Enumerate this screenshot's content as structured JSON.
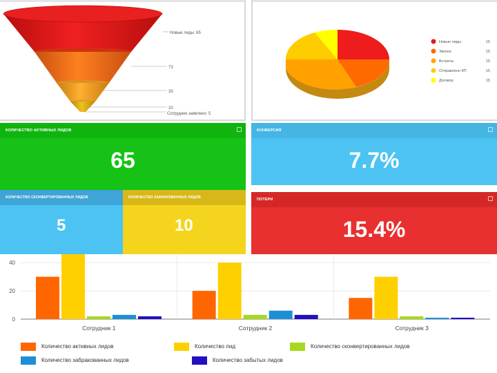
{
  "funnel": {
    "labels": [
      "Новые лиды: 65",
      "73",
      "33",
      "20",
      "Сотрудник заявлено: 5"
    ],
    "colors": [
      "#e31a1a",
      "#f27020",
      "#f5a020",
      "#e8b010"
    ]
  },
  "pie": {
    "legend": [
      {
        "label": "Новые лиды",
        "value": "15",
        "color": "#e31a1a"
      },
      {
        "label": "Звонок",
        "value": "15",
        "color": "#ff6600"
      },
      {
        "label": "Встреча",
        "value": "15",
        "color": "#ffa500"
      },
      {
        "label": "Отправлено КП",
        "value": "15",
        "color": "#ffcc00"
      },
      {
        "label": "Договор",
        "value": "15",
        "color": "#ffff00"
      }
    ]
  },
  "tiles": {
    "active": {
      "title": "КОЛИЧЕСТВО АКТИВНЫХ ЛИДОВ",
      "value": "65",
      "color": "#16c216"
    },
    "conversion": {
      "title": "КОНВЕРСИЯ",
      "value": "7.7%",
      "color": "#4cc3f2"
    },
    "rejected": {
      "title": "КОЛИЧЕСТВО СКОНВЕРТИРОВАННЫХ ЛИДОВ",
      "value": "5",
      "color": "#4cc3f2"
    },
    "forgotten": {
      "title": "КОЛИЧЕСТВО ЗАБРАКОВАННЫХ ЛИДОВ",
      "value": "10",
      "color": "#f5d41d"
    },
    "losses": {
      "title": "ПОТЕРИ",
      "value": "15.4%",
      "color": "#e83030"
    }
  },
  "chart_data": {
    "type": "bar",
    "categories": [
      "Сотрудник 1",
      "Сотрудник 2",
      "Сотрудник 3"
    ],
    "ylim": [
      0,
      45
    ],
    "yticks": [
      "0",
      "20",
      "40"
    ],
    "yticks_values": [
      0,
      20,
      40
    ],
    "grid": true,
    "legend_position": "bottom",
    "series": [
      {
        "name": "Количество активных лидов",
        "color": "#ff6600",
        "values": [
          30,
          20,
          15
        ]
      },
      {
        "name": "Количество лид",
        "color": "#ffd000",
        "values": [
          49,
          40,
          30
        ]
      },
      {
        "name": "Количество сконвертированных лидов",
        "color": "#a8d81e",
        "values": [
          2,
          3,
          2
        ]
      },
      {
        "name": "Количество забракованных лидов",
        "color": "#1e8fd6",
        "values": [
          3,
          6,
          1
        ]
      },
      {
        "name": "Количество забытых лидов",
        "color": "#2010c0",
        "values": [
          2,
          3,
          1
        ]
      }
    ]
  }
}
